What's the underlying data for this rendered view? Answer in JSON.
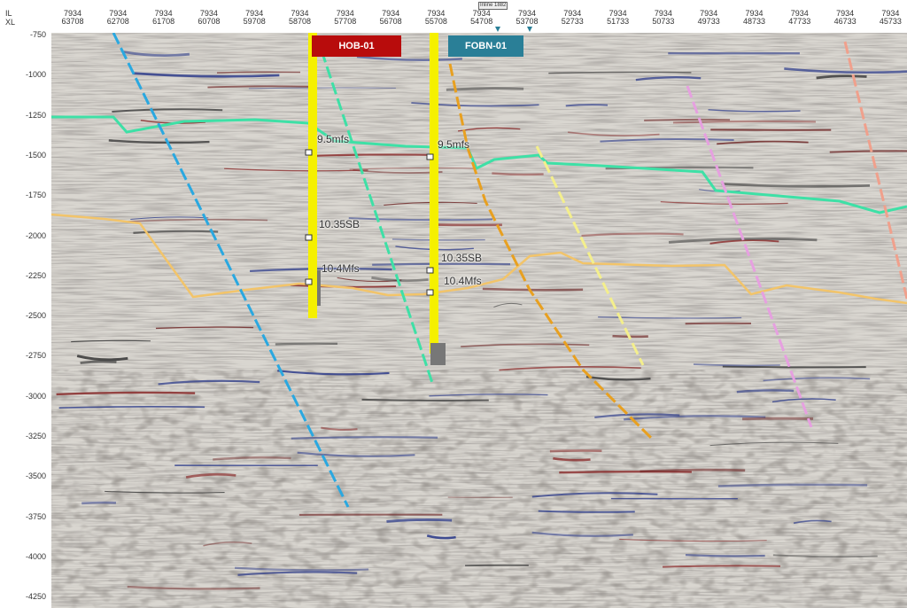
{
  "axis_header": {
    "il_label": "IL",
    "xl_label": "XL",
    "inline_tag": "Inline 1882",
    "columns": [
      {
        "il": "7934",
        "xl": "63708"
      },
      {
        "il": "7934",
        "xl": "62708"
      },
      {
        "il": "7934",
        "xl": "61708"
      },
      {
        "il": "7934",
        "xl": "60708"
      },
      {
        "il": "7934",
        "xl": "59708"
      },
      {
        "il": "7934",
        "xl": "58708"
      },
      {
        "il": "7934",
        "xl": "57708"
      },
      {
        "il": "7934",
        "xl": "56708"
      },
      {
        "il": "7934",
        "xl": "55708"
      },
      {
        "il": "7934",
        "xl": "54708"
      },
      {
        "il": "7934",
        "xl": "53708"
      },
      {
        "il": "7934",
        "xl": "52733"
      },
      {
        "il": "7934",
        "xl": "51733"
      },
      {
        "il": "7934",
        "xl": "50733"
      },
      {
        "il": "7934",
        "xl": "49733"
      },
      {
        "il": "7934",
        "xl": "48733"
      },
      {
        "il": "7934",
        "xl": "47733"
      },
      {
        "il": "7934",
        "xl": "46733"
      },
      {
        "il": "7934",
        "xl": "45733"
      }
    ]
  },
  "depth_axis": {
    "labels": [
      "-750",
      "-1000",
      "-1250",
      "-1500",
      "-1750",
      "-2000",
      "-2250",
      "-2500",
      "-2750",
      "-3000",
      "-3250",
      "-3500",
      "-3750",
      "-4000",
      "-4250"
    ]
  },
  "wells": [
    {
      "name": "HOB-01",
      "color": "#b80c0c"
    },
    {
      "name": "FOBN-01",
      "color": "#2a7f97"
    }
  ],
  "annotations": {
    "hob_top1": "9.5mfs",
    "hob_top2": "10.35SB",
    "hob_top3": "10.4Mfs",
    "fobn_top1": "9.5mfs",
    "fobn_top2": "10.35SB",
    "fobn_top3": "10.4Mfs"
  },
  "colors": {
    "horizon_upper": "#3ee0a6",
    "horizon_lower": "#f2c46a",
    "well_track": "#f5f000",
    "fault_blue": "#2aa8e0",
    "fault_green": "#3ee0a6",
    "fault_orange": "#e8a020",
    "fault_yellow": "#f4ef8c",
    "fault_pink": "#e6a0e0",
    "fault_salmon": "#f0a08c"
  }
}
